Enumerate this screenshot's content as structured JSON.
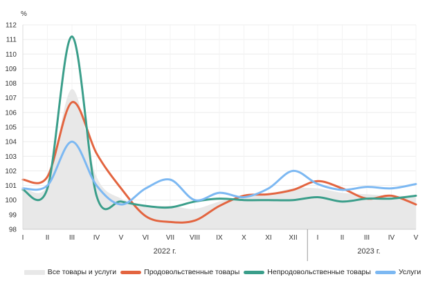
{
  "chart_data": {
    "type": "line",
    "unit_label": "%",
    "ylim": [
      98,
      112
    ],
    "y_ticks": [
      "98",
      "99",
      "100",
      "101",
      "102",
      "103",
      "104",
      "105",
      "106",
      "107",
      "108",
      "109",
      "110",
      "111",
      "112"
    ],
    "categories": [
      "I",
      "II",
      "III",
      "IV",
      "V",
      "VI",
      "VII",
      "VIII",
      "IX",
      "X",
      "XI",
      "XII",
      "I",
      "II",
      "III",
      "IV",
      "V"
    ],
    "year_labels": [
      "2022 г.",
      "2023 г."
    ],
    "grid": true,
    "legend_position": "bottom",
    "series": [
      {
        "name": "Все товары и услуги",
        "style": "area",
        "color": "#e8e8e8",
        "values": [
          100.9,
          101.0,
          107.6,
          101.6,
          100.1,
          99.6,
          99.6,
          99.4,
          99.9,
          100.2,
          100.4,
          100.8,
          100.8,
          100.5,
          100.4,
          100.3,
          100.3
        ]
      },
      {
        "name": "Продовольственные товары",
        "style": "line",
        "color": "#e3643f",
        "values": [
          101.4,
          101.6,
          106.7,
          103.2,
          100.8,
          98.9,
          98.5,
          98.6,
          99.6,
          100.3,
          100.4,
          100.7,
          101.3,
          100.8,
          100.1,
          100.3,
          99.7
        ]
      },
      {
        "name": "Непродовольственные товары",
        "style": "line",
        "color": "#3a9e8a",
        "values": [
          100.7,
          100.8,
          111.2,
          100.3,
          99.9,
          99.6,
          99.5,
          99.9,
          100.1,
          100.0,
          100.0,
          100.0,
          100.2,
          99.9,
          100.1,
          100.1,
          100.3
        ]
      },
      {
        "name": "Услуги",
        "style": "line",
        "color": "#7cb8f2",
        "values": [
          100.8,
          101.0,
          104.0,
          101.0,
          99.7,
          100.8,
          101.4,
          100.0,
          100.5,
          100.2,
          100.8,
          102.0,
          101.1,
          100.7,
          100.9,
          100.8,
          101.1
        ]
      }
    ]
  }
}
